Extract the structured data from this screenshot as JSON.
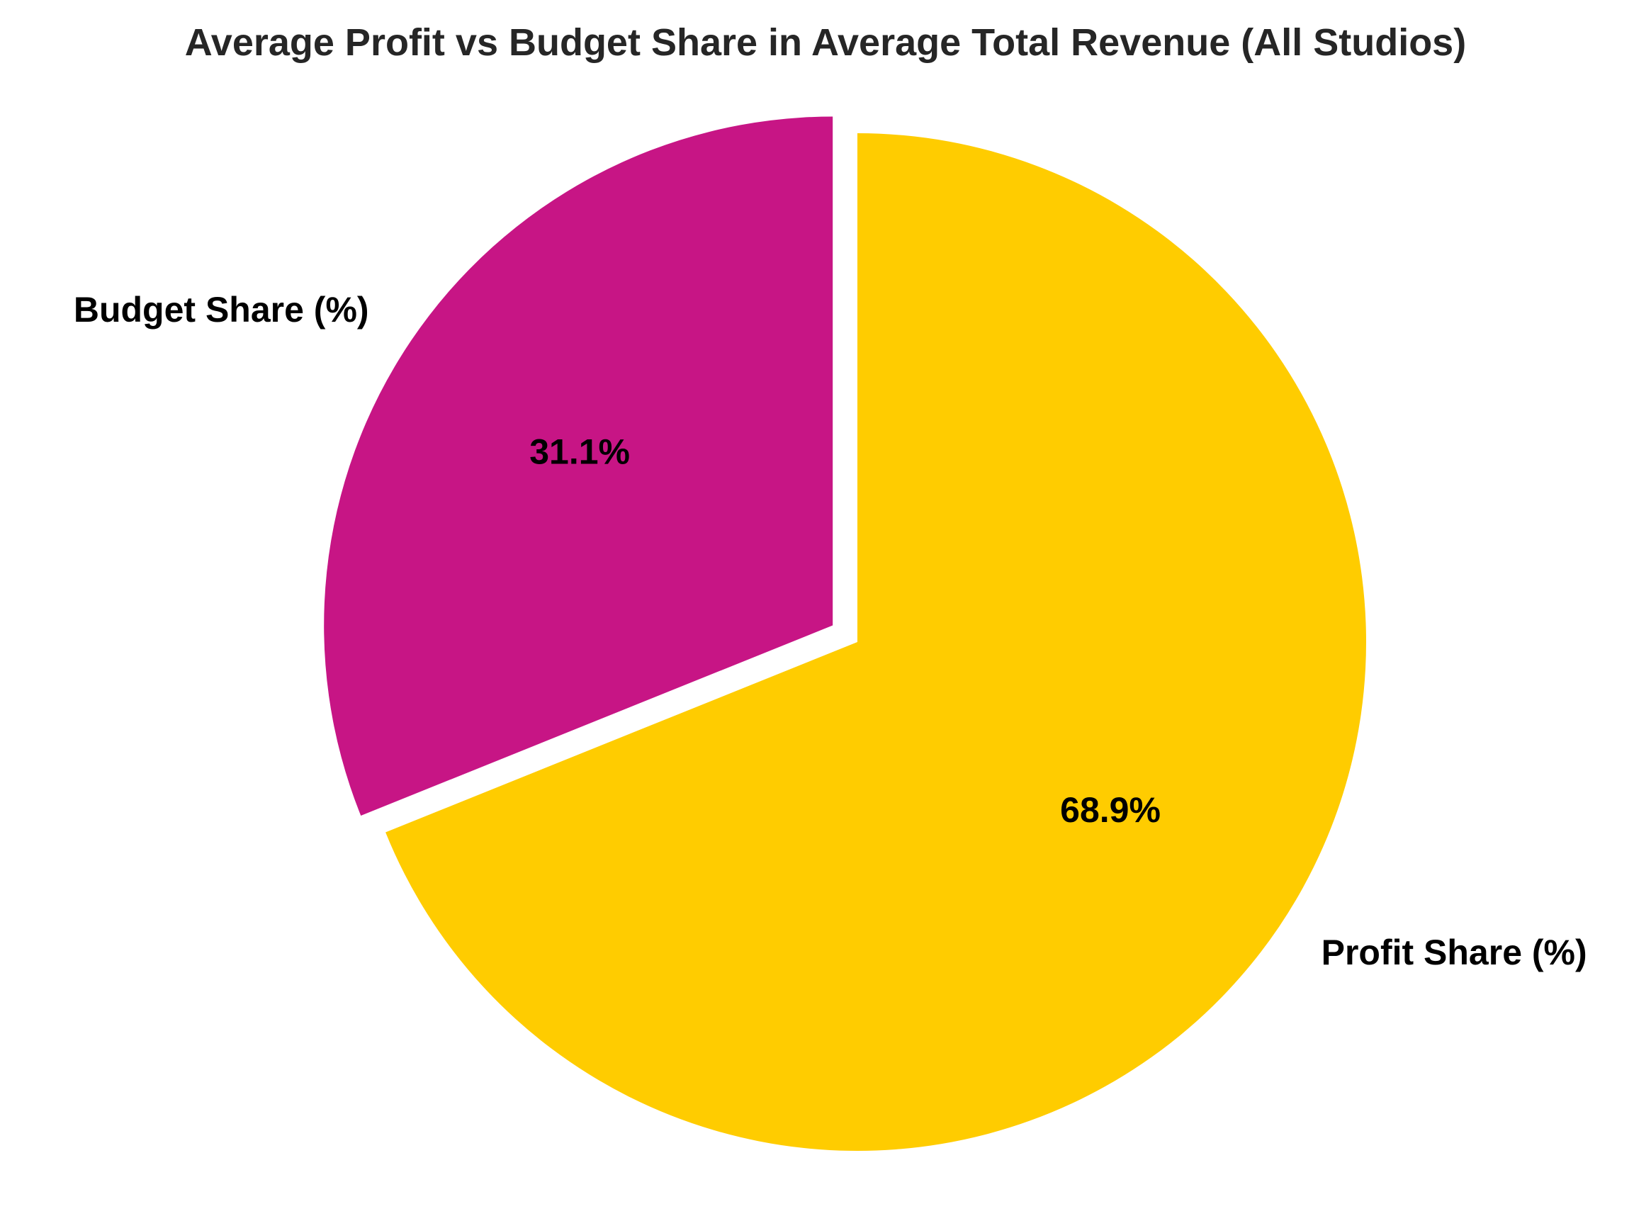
{
  "chart_data": {
    "type": "pie",
    "title": "Average Profit vs Budget Share in Average Total Revenue (All Studios)",
    "slices": [
      {
        "label": "Budget Share (%)",
        "value": 31.1,
        "pct_label": "31.1%",
        "color": "#C71585",
        "exploded": true
      },
      {
        "label": "Profit Share (%)",
        "value": 68.9,
        "pct_label": "68.9%",
        "color": "#FFCC00",
        "exploded": false
      }
    ],
    "start_angle_deg": 90,
    "direction": "counterclockwise",
    "legend": "none"
  }
}
